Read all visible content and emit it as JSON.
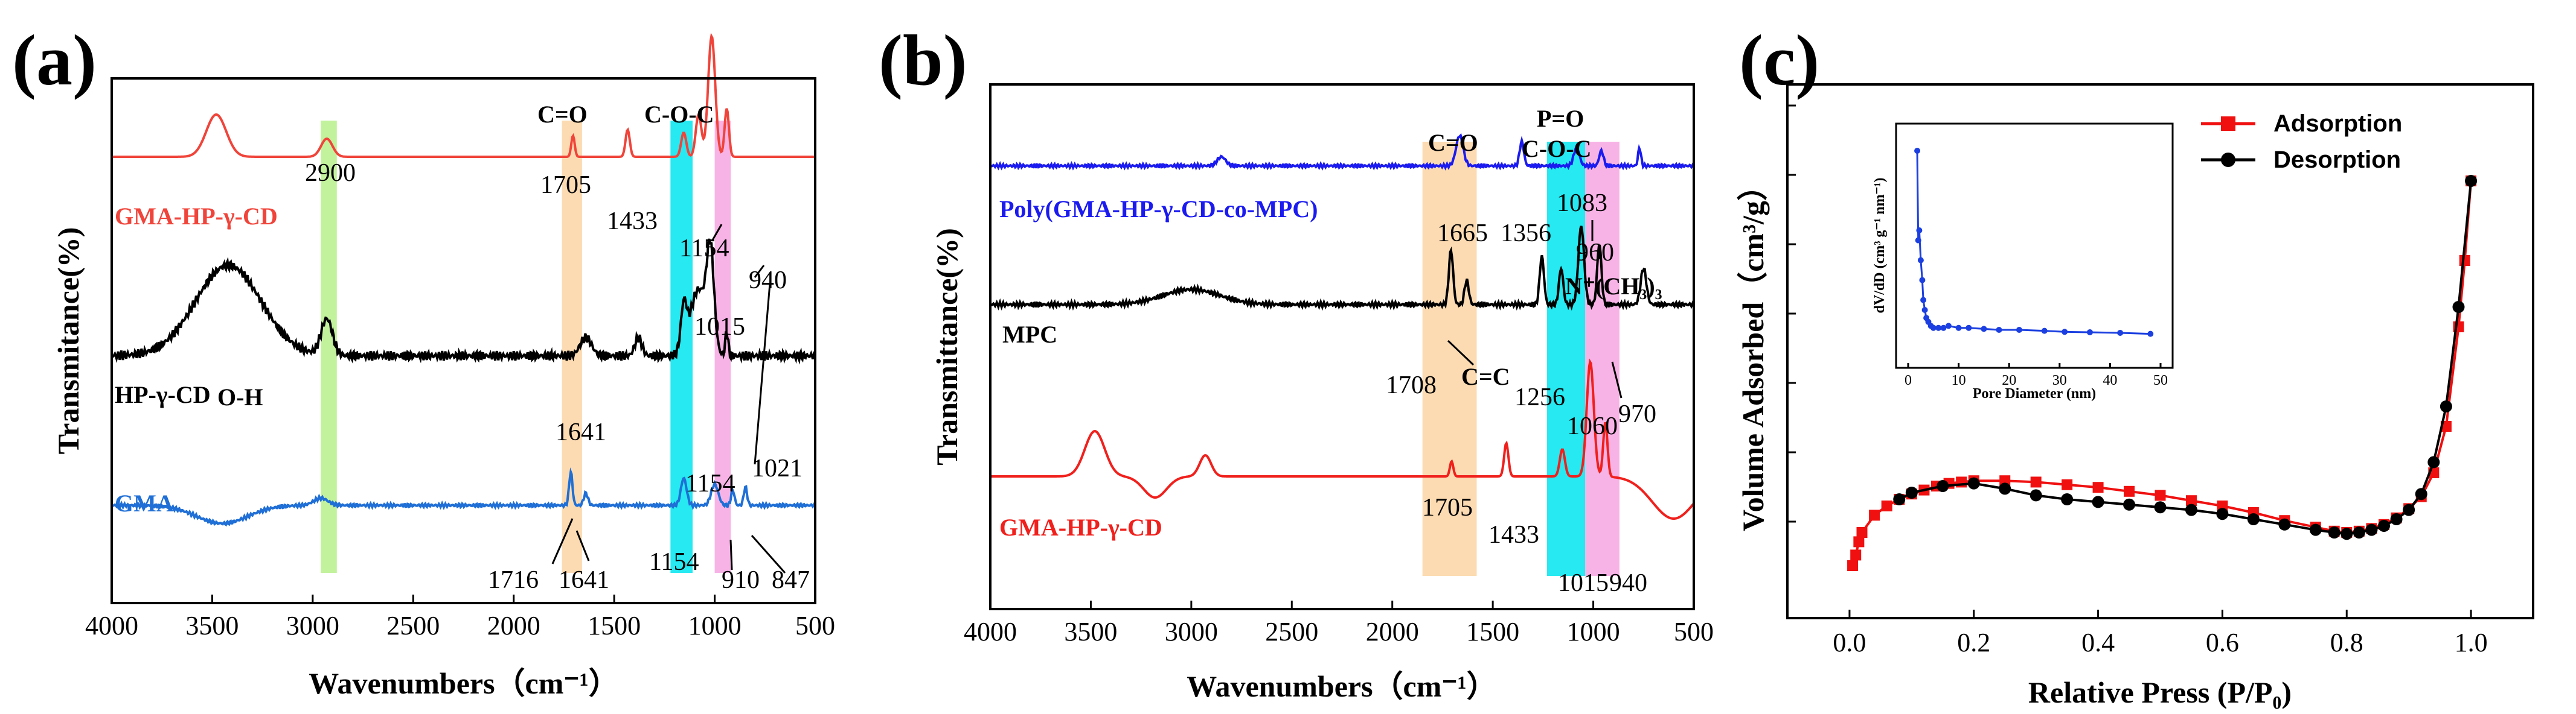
{
  "chart_data": [
    {
      "id": "a",
      "panel_label": "(a)",
      "type": "line",
      "title": "",
      "xlabel": "Wavenumbers（cm⁻¹）",
      "ylabel": "Transmitance(%)",
      "xlim": [
        4000,
        500
      ],
      "x_ticks": [
        "4000",
        "3500",
        "3000",
        "2500",
        "2000",
        "1500",
        "1000",
        "500"
      ],
      "bands": [
        {
          "from": 2960,
          "to": 2880,
          "color": "#b8f08c"
        },
        {
          "from": 1760,
          "to": 1660,
          "color": "#fbd5a5"
        },
        {
          "from": 1220,
          "to": 1110,
          "color": "#00e5ee"
        },
        {
          "from": 1000,
          "to": 920,
          "color": "#f7a6e2"
        }
      ],
      "series": [
        {
          "name": "GMA-HP-γ-CD",
          "color": "#f0443a",
          "label": "GMA-HP-γ-CD"
        },
        {
          "name": "HP-γ-CD",
          "color": "#000000",
          "label": "HP-γ-CD"
        },
        {
          "name": "GMA",
          "color": "#1f6fd6",
          "label": "GMA"
        }
      ],
      "annotations": [
        "C=O",
        "C-O-C",
        "2900",
        "1705",
        "1433",
        "1154",
        "940",
        "1015",
        "O-H",
        "1641",
        "1154",
        "1021",
        "1716",
        "1641",
        "1154",
        "910",
        "847"
      ]
    },
    {
      "id": "b",
      "panel_label": "(b)",
      "type": "line",
      "title": "",
      "xlabel": "Wavenumbers（cm⁻¹）",
      "ylabel": "Transmittance(%)",
      "xlim": [
        4000,
        500
      ],
      "x_ticks": [
        "4000",
        "3500",
        "3000",
        "2500",
        "2000",
        "1500",
        "1000",
        "500"
      ],
      "bands": [
        {
          "from": 1850,
          "to": 1580,
          "color": "#fbd5a5"
        },
        {
          "from": 1230,
          "to": 1040,
          "color": "#00e5ee"
        },
        {
          "from": 1040,
          "to": 870,
          "color": "#f7a6e2"
        }
      ],
      "series": [
        {
          "name": "Poly(GMA-HP-γ-CD-co-MPC)",
          "color": "#1b1bf0",
          "label": "Poly(GMA-HP-γ-CD-co-MPC)"
        },
        {
          "name": "MPC",
          "color": "#000000",
          "label": "MPC"
        },
        {
          "name": "GMA-HP-γ-CD",
          "color": "#f0201c",
          "label": "GMA-HP-γ-CD"
        }
      ],
      "annotations": [
        "C=O",
        "P=O",
        "C-O-C",
        "1665",
        "1356",
        "1083",
        "960",
        "N⁺(CH₃)₃",
        "1708",
        "C=C",
        "1256",
        "1060",
        "970",
        "1705",
        "1433",
        "1015",
        "940"
      ]
    },
    {
      "id": "c",
      "panel_label": "(c)",
      "type": "line",
      "title": "",
      "xlabel": "Relative Press (P/P₀)",
      "ylabel": "Volume Adsorbed（cm³/g）",
      "xlim": [
        -0.1,
        1.1
      ],
      "x_ticks": [
        "0.0",
        "0.2",
        "0.4",
        "0.6",
        "0.8",
        "1.0"
      ],
      "series": [
        {
          "name": "Adsorption",
          "color": "#f01010",
          "marker": "square",
          "x": [
            0.005,
            0.01,
            0.015,
            0.02,
            0.04,
            0.06,
            0.08,
            0.1,
            0.12,
            0.14,
            0.16,
            0.18,
            0.2,
            0.25,
            0.3,
            0.35,
            0.4,
            0.45,
            0.5,
            0.55,
            0.6,
            0.65,
            0.7,
            0.75,
            0.78,
            0.8,
            0.82,
            0.84,
            0.86,
            0.88,
            0.9,
            0.92,
            0.94,
            0.96,
            0.98,
            0.99,
            1.0
          ],
          "y": [
            10,
            18,
            28,
            35,
            48,
            55,
            60,
            64,
            67,
            70,
            72,
            73,
            74,
            74,
            73,
            71,
            69,
            66,
            63,
            59,
            55,
            50,
            44,
            39,
            36,
            35,
            36,
            38,
            41,
            46,
            53,
            62,
            80,
            115,
            190,
            240,
            300
          ]
        },
        {
          "name": "Desorption",
          "color": "#000000",
          "marker": "circle",
          "x": [
            1.0,
            0.98,
            0.96,
            0.94,
            0.92,
            0.9,
            0.88,
            0.86,
            0.84,
            0.82,
            0.8,
            0.78,
            0.75,
            0.7,
            0.65,
            0.6,
            0.55,
            0.5,
            0.45,
            0.4,
            0.35,
            0.3,
            0.25,
            0.2,
            0.15,
            0.1,
            0.08
          ],
          "y": [
            300,
            205,
            130,
            88,
            64,
            52,
            45,
            40,
            37,
            35,
            34,
            35,
            37,
            41,
            45,
            49,
            52,
            54,
            56,
            58,
            60,
            63,
            68,
            72,
            70,
            65,
            60
          ]
        }
      ],
      "inset": {
        "xlabel": "Pore Diameter (nm)",
        "ylabel": "dV/dD (cm³ g⁻¹ nm⁻¹)",
        "x_ticks": [
          "0",
          "10",
          "20",
          "30",
          "40",
          "50"
        ],
        "xlim": [
          0,
          50
        ],
        "ylim": [
          0,
          1
        ],
        "x": [
          1.8,
          2.0,
          2.2,
          2.5,
          2.8,
          3.0,
          3.3,
          3.6,
          4.0,
          4.5,
          5.0,
          6.0,
          7.0,
          8.0,
          10.0,
          12.0,
          15.0,
          18.0,
          22.0,
          27.0,
          31.0,
          36.0,
          42.0,
          48.0
        ],
        "y": [
          1.0,
          0.55,
          0.6,
          0.45,
          0.35,
          0.25,
          0.2,
          0.16,
          0.14,
          0.12,
          0.11,
          0.11,
          0.11,
          0.12,
          0.11,
          0.11,
          0.105,
          0.1,
          0.1,
          0.095,
          0.09,
          0.088,
          0.085,
          0.08
        ],
        "color": "#1b3fe0"
      }
    }
  ]
}
